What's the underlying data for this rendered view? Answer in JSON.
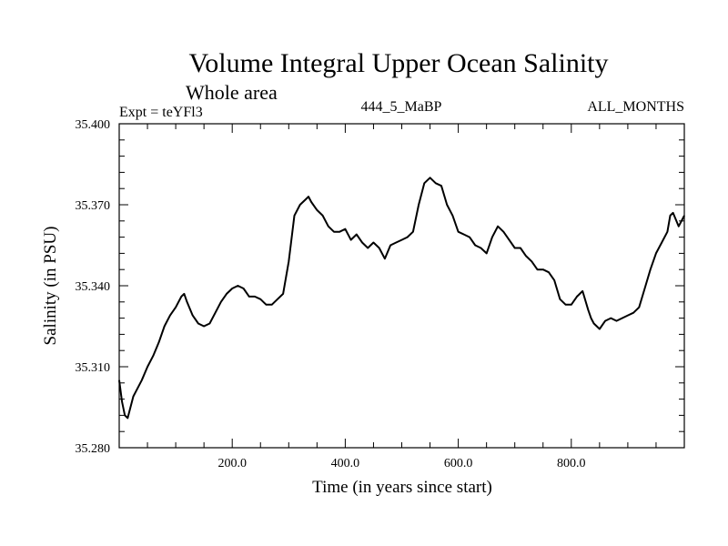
{
  "chart_data": {
    "type": "line",
    "title": "Volume Integral Upper Ocean Salinity",
    "subtitle": "Whole area",
    "expt_label": "Expt = teYFl3",
    "run_label": "444_5_MaBP",
    "months_label": "ALL_MONTHS",
    "xlabel": "Time (in years since start)",
    "ylabel": "Salinity (in PSU)",
    "xlim": [
      0,
      1000
    ],
    "ylim": [
      35.28,
      35.4
    ],
    "x_ticks": [
      {
        "value": 200,
        "label": "200.0"
      },
      {
        "value": 400,
        "label": "400.0"
      },
      {
        "value": 600,
        "label": "600.0"
      },
      {
        "value": 800,
        "label": "800.0"
      }
    ],
    "y_ticks": [
      {
        "value": 35.28,
        "label": "35.280"
      },
      {
        "value": 35.31,
        "label": "35.310"
      },
      {
        "value": 35.34,
        "label": "35.340"
      },
      {
        "value": 35.37,
        "label": "35.370"
      },
      {
        "value": 35.4,
        "label": "35.400"
      }
    ],
    "series": [
      {
        "name": "salinity",
        "x": [
          0,
          5,
          10,
          15,
          20,
          25,
          30,
          40,
          50,
          60,
          70,
          80,
          90,
          100,
          110,
          115,
          120,
          130,
          140,
          150,
          160,
          170,
          180,
          190,
          200,
          210,
          220,
          230,
          240,
          250,
          260,
          270,
          280,
          290,
          300,
          310,
          320,
          330,
          335,
          340,
          350,
          360,
          370,
          380,
          390,
          400,
          410,
          420,
          430,
          440,
          450,
          460,
          470,
          480,
          490,
          500,
          510,
          520,
          530,
          540,
          545,
          550,
          560,
          570,
          580,
          590,
          600,
          610,
          620,
          630,
          640,
          650,
          660,
          670,
          680,
          690,
          700,
          710,
          720,
          730,
          740,
          750,
          760,
          770,
          780,
          790,
          800,
          810,
          820,
          830,
          835,
          840,
          850,
          860,
          870,
          880,
          890,
          900,
          910,
          920,
          930,
          940,
          950,
          960,
          970,
          975,
          980,
          990,
          1000
        ],
        "values": [
          35.305,
          35.297,
          35.292,
          35.291,
          35.295,
          35.299,
          35.301,
          35.305,
          35.31,
          35.314,
          35.319,
          35.325,
          35.329,
          35.332,
          35.336,
          35.337,
          35.334,
          35.329,
          35.326,
          35.325,
          35.326,
          35.33,
          35.334,
          35.337,
          35.339,
          35.34,
          35.339,
          35.336,
          35.336,
          35.335,
          35.333,
          35.333,
          35.335,
          35.337,
          35.349,
          35.366,
          35.37,
          35.372,
          35.373,
          35.371,
          35.368,
          35.366,
          35.362,
          35.36,
          35.36,
          35.361,
          35.357,
          35.359,
          35.356,
          35.354,
          35.356,
          35.354,
          35.35,
          35.355,
          35.356,
          35.357,
          35.358,
          35.36,
          35.37,
          35.378,
          35.379,
          35.38,
          35.378,
          35.377,
          35.37,
          35.366,
          35.36,
          35.359,
          35.358,
          35.355,
          35.354,
          35.352,
          35.358,
          35.362,
          35.36,
          35.357,
          35.354,
          35.354,
          35.351,
          35.349,
          35.346,
          35.346,
          35.345,
          35.342,
          35.335,
          35.333,
          35.333,
          35.336,
          35.338,
          35.331,
          35.328,
          35.326,
          35.324,
          35.327,
          35.328,
          35.327,
          35.328,
          35.329,
          35.33,
          35.332,
          35.339,
          35.346,
          35.352,
          35.356,
          35.36,
          35.366,
          35.367,
          35.362,
          35.366
        ]
      }
    ]
  }
}
